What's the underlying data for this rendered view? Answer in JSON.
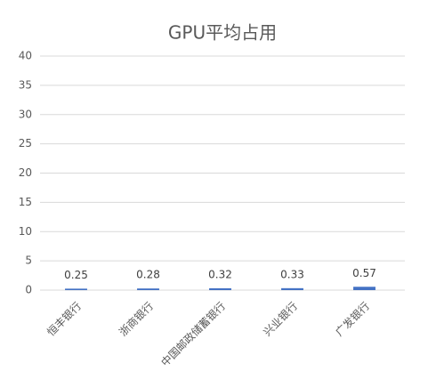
{
  "chart_data": {
    "type": "bar",
    "title": "GPU平均占用",
    "categories": [
      "恒丰银行",
      "浙商银行",
      "中国邮政储蓄银行",
      "兴业银行",
      "广发银行"
    ],
    "values": [
      0.25,
      0.28,
      0.32,
      0.33,
      0.57
    ],
    "color": "#4472c4",
    "ylim": [
      0,
      40
    ],
    "yticks": [
      0,
      5,
      10,
      15,
      20,
      25,
      30,
      35,
      40
    ],
    "grid": true
  }
}
